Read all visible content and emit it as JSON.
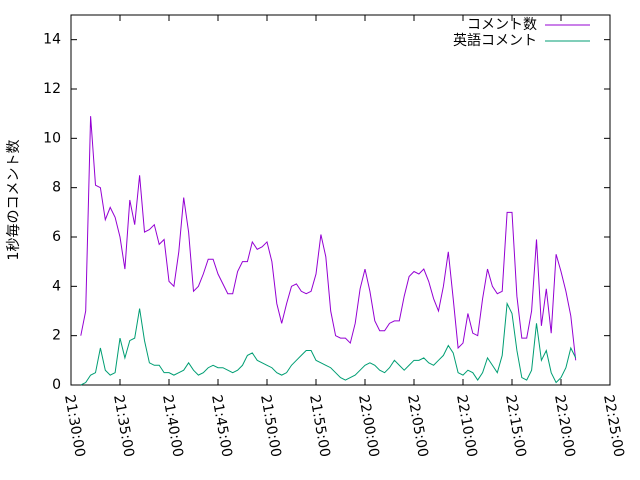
{
  "chart_data": {
    "type": "line",
    "ylabel": "1秒毎のコメント数",
    "x": [
      "21:31:00",
      "21:31:30",
      "21:32:00",
      "21:32:30",
      "21:33:00",
      "21:33:30",
      "21:34:00",
      "21:34:30",
      "21:35:00",
      "21:35:30",
      "21:36:00",
      "21:36:30",
      "21:37:00",
      "21:37:30",
      "21:38:00",
      "21:38:30",
      "21:39:00",
      "21:39:30",
      "21:40:00",
      "21:40:30",
      "21:41:00",
      "21:41:30",
      "21:42:00",
      "21:42:30",
      "21:43:00",
      "21:43:30",
      "21:44:00",
      "21:44:30",
      "21:45:00",
      "21:45:30",
      "21:46:00",
      "21:46:30",
      "21:47:00",
      "21:47:30",
      "21:48:00",
      "21:48:30",
      "21:49:00",
      "21:49:30",
      "21:50:00",
      "21:50:30",
      "21:51:00",
      "21:51:30",
      "21:52:00",
      "21:52:30",
      "21:53:00",
      "21:53:30",
      "21:54:00",
      "21:54:30",
      "21:55:00",
      "21:55:30",
      "21:56:00",
      "21:56:30",
      "21:57:00",
      "21:57:30",
      "21:58:00",
      "21:58:30",
      "21:59:00",
      "21:59:30",
      "22:00:00",
      "22:00:30",
      "22:01:00",
      "22:01:30",
      "22:02:00",
      "22:02:30",
      "22:03:00",
      "22:03:30",
      "22:04:00",
      "22:04:30",
      "22:05:00",
      "22:05:30",
      "22:06:00",
      "22:06:30",
      "22:07:00",
      "22:07:30",
      "22:08:00",
      "22:08:30",
      "22:09:00",
      "22:09:30",
      "22:10:00",
      "22:10:30",
      "22:11:00",
      "22:11:30",
      "22:12:00",
      "22:12:30",
      "22:13:00",
      "22:13:30",
      "22:14:00",
      "22:14:30",
      "22:15:00",
      "22:15:30",
      "22:16:00",
      "22:16:30",
      "22:17:00",
      "22:17:30",
      "22:18:00",
      "22:18:30",
      "22:19:00",
      "22:19:30",
      "22:20:00",
      "22:20:30",
      "22:21:00",
      "22:21:30"
    ],
    "series": [
      {
        "name": "コメント数",
        "color": "#9400d3",
        "values": [
          2.0,
          3.0,
          10.9,
          8.1,
          8.0,
          6.7,
          7.2,
          6.8,
          6.0,
          4.7,
          7.5,
          6.5,
          8.5,
          6.2,
          6.3,
          6.5,
          5.7,
          5.9,
          4.2,
          4.0,
          5.4,
          7.6,
          6.2,
          3.8,
          4.0,
          4.5,
          5.1,
          5.1,
          4.5,
          4.1,
          3.7,
          3.7,
          4.6,
          5.0,
          5.0,
          5.8,
          5.5,
          5.6,
          5.8,
          5.0,
          3.3,
          2.5,
          3.3,
          4.0,
          4.1,
          3.8,
          3.7,
          3.8,
          4.5,
          6.1,
          5.2,
          3.0,
          2.0,
          1.9,
          1.9,
          1.7,
          2.5,
          3.9,
          4.7,
          3.8,
          2.6,
          2.2,
          2.2,
          2.5,
          2.6,
          2.6,
          3.6,
          4.4,
          4.6,
          4.5,
          4.7,
          4.2,
          3.5,
          3.0,
          4.0,
          5.4,
          3.5,
          1.5,
          1.7,
          2.9,
          2.1,
          2.0,
          3.5,
          4.7,
          4.0,
          3.7,
          3.8,
          7.0,
          7.0,
          3.6,
          1.9,
          1.9,
          3.0,
          5.9,
          2.4,
          3.9,
          2.1,
          5.3,
          4.6,
          3.8,
          2.8,
          1.0
        ]
      },
      {
        "name": "英語コメント",
        "color": "#009e73",
        "values": [
          0.0,
          0.1,
          0.4,
          0.5,
          1.5,
          0.6,
          0.4,
          0.5,
          1.9,
          1.1,
          1.8,
          1.9,
          3.1,
          1.8,
          0.9,
          0.8,
          0.8,
          0.5,
          0.5,
          0.4,
          0.5,
          0.6,
          0.9,
          0.6,
          0.4,
          0.5,
          0.7,
          0.8,
          0.7,
          0.7,
          0.6,
          0.5,
          0.6,
          0.8,
          1.2,
          1.3,
          1.0,
          0.9,
          0.8,
          0.7,
          0.5,
          0.4,
          0.5,
          0.8,
          1.0,
          1.2,
          1.4,
          1.4,
          1.0,
          0.9,
          0.8,
          0.7,
          0.5,
          0.3,
          0.2,
          0.3,
          0.4,
          0.6,
          0.8,
          0.9,
          0.8,
          0.6,
          0.5,
          0.7,
          1.0,
          0.8,
          0.6,
          0.8,
          1.0,
          1.0,
          1.1,
          0.9,
          0.8,
          1.0,
          1.2,
          1.6,
          1.3,
          0.5,
          0.4,
          0.6,
          0.5,
          0.2,
          0.5,
          1.1,
          0.8,
          0.5,
          1.2,
          3.3,
          2.9,
          1.4,
          0.3,
          0.2,
          0.6,
          2.5,
          1.0,
          1.4,
          0.5,
          0.1,
          0.3,
          0.7,
          1.5,
          1.1
        ]
      }
    ],
    "xlim": [
      "21:30:00",
      "22:25:00"
    ],
    "xticks": [
      "21:30:00",
      "21:35:00",
      "21:40:00",
      "21:45:00",
      "21:50:00",
      "21:55:00",
      "22:00:00",
      "22:05:00",
      "22:10:00",
      "22:15:00",
      "22:20:00",
      "22:25:00"
    ],
    "ylim": [
      0,
      15
    ],
    "yticks": [
      0,
      2,
      4,
      6,
      8,
      10,
      12,
      14
    ],
    "grid": false,
    "legend": "upper right"
  }
}
